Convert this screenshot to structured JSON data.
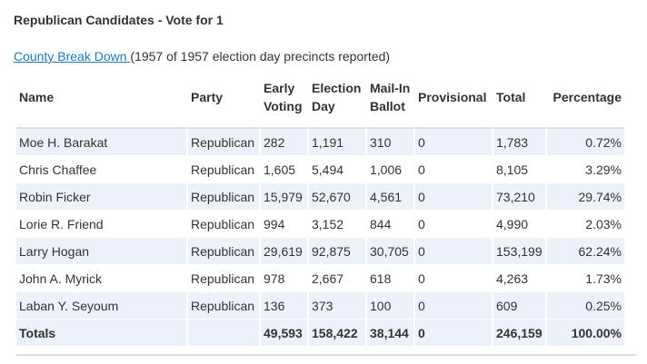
{
  "title": "Republican Candidates - Vote for 1",
  "subline": {
    "link": "County Break Down ",
    "note": "(1957 of 1957 election day precincts reported)"
  },
  "table": {
    "headers": {
      "name": "Name",
      "party": "Party",
      "early": "Early Voting",
      "election_day": "Election Day",
      "mail": "Mail-In Ballot",
      "provisional": "Provisional",
      "total": "Total",
      "percentage": "Percentage"
    },
    "rows": [
      {
        "name": "Moe H. Barakat",
        "party": "Republican",
        "early": "282",
        "election_day": "1,191",
        "mail": "310",
        "provisional": "0",
        "total": "1,783",
        "percentage": "0.72%"
      },
      {
        "name": "Chris Chaffee",
        "party": "Republican",
        "early": "1,605",
        "election_day": "5,494",
        "mail": "1,006",
        "provisional": "0",
        "total": "8,105",
        "percentage": "3.29%"
      },
      {
        "name": "Robin Ficker",
        "party": "Republican",
        "early": "15,979",
        "election_day": "52,670",
        "mail": "4,561",
        "provisional": "0",
        "total": "73,210",
        "percentage": "29.74%"
      },
      {
        "name": "Lorie R. Friend",
        "party": "Republican",
        "early": "994",
        "election_day": "3,152",
        "mail": "844",
        "provisional": "0",
        "total": "4,990",
        "percentage": "2.03%"
      },
      {
        "name": "Larry Hogan",
        "party": "Republican",
        "early": "29,619",
        "election_day": "92,875",
        "mail": "30,705",
        "provisional": "0",
        "total": "153,199",
        "percentage": "62.24%"
      },
      {
        "name": "John A. Myrick",
        "party": "Republican",
        "early": "978",
        "election_day": "2,667",
        "mail": "618",
        "provisional": "0",
        "total": "4,263",
        "percentage": "1.73%"
      },
      {
        "name": "Laban Y. Seyoum",
        "party": "Republican",
        "early": "136",
        "election_day": "373",
        "mail": "100",
        "provisional": "0",
        "total": "609",
        "percentage": "0.25%"
      }
    ],
    "totals": {
      "label": "Totals",
      "party": "",
      "early": "49,593",
      "election_day": "158,422",
      "mail": "38,144",
      "provisional": "0",
      "total": "246,159",
      "percentage": "100.00%"
    }
  }
}
